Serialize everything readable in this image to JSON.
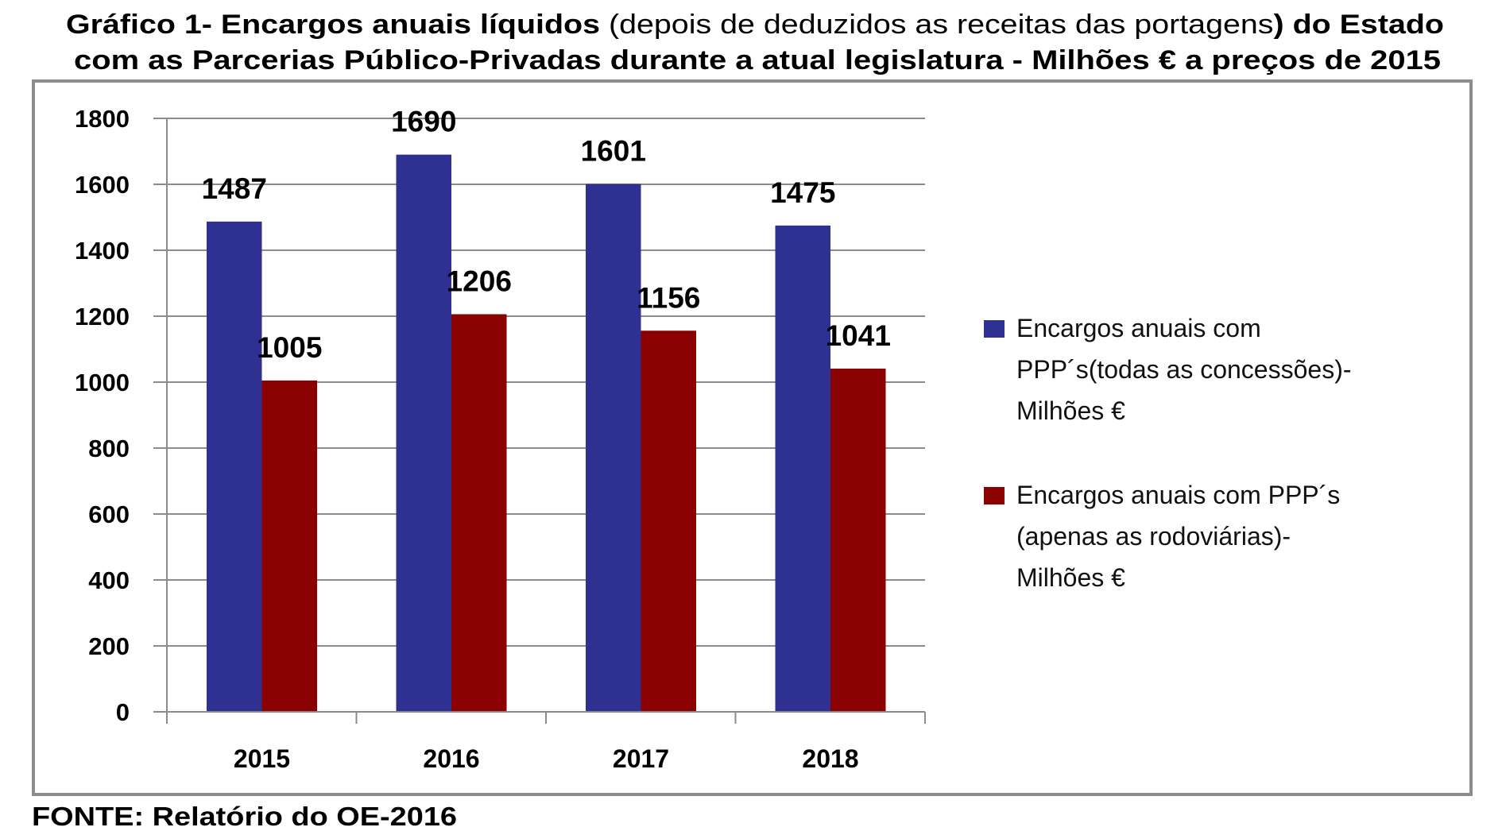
{
  "title": {
    "line1": [
      {
        "text": "Gráfico 1- Encargos anuais líquidos ",
        "bold": true
      },
      {
        "text": "(depois de deduzidos as receitas das portagens",
        "bold": false
      },
      {
        "text": ") do Estado",
        "bold": true
      }
    ],
    "line2": "com as Parcerias Público-Privadas durante a atual legislatura - Milhões € a preços de 2015"
  },
  "source": "FONTE: Relatório do OE-2016",
  "chart_data": {
    "type": "bar",
    "title": "Gráfico 1- Encargos anuais líquidos (depois de deduzidos as receitas das portagens) do Estado com as Parcerias Público-Privadas durante a atual legislatura - Milhões € a preços de 2015",
    "xlabel": "",
    "ylabel": "",
    "categories": [
      "2015",
      "2016",
      "2017",
      "2018"
    ],
    "ylim": [
      0,
      1800
    ],
    "yticks": [
      0,
      200,
      400,
      600,
      800,
      1000,
      1200,
      1400,
      1600,
      1800
    ],
    "grid": true,
    "legend_position": "right",
    "series": [
      {
        "name": "Encargos anuais com PPP´s(todas as concessões)- Milhões €",
        "legend_lines": [
          "Encargos anuais com",
          "PPP´s(todas as concessões)-",
          "Milhões €"
        ],
        "color": "#2E3192",
        "values": [
          1487,
          1690,
          1601,
          1475
        ]
      },
      {
        "name": "Encargos anuais com PPP´s (apenas as rodoviárias)- Milhões €",
        "legend_lines": [
          "Encargos anuais com PPP´s",
          "(apenas as rodoviárias)-",
          "Milhões €"
        ],
        "color": "#8B0000",
        "values": [
          1005,
          1206,
          1156,
          1041
        ]
      }
    ]
  }
}
